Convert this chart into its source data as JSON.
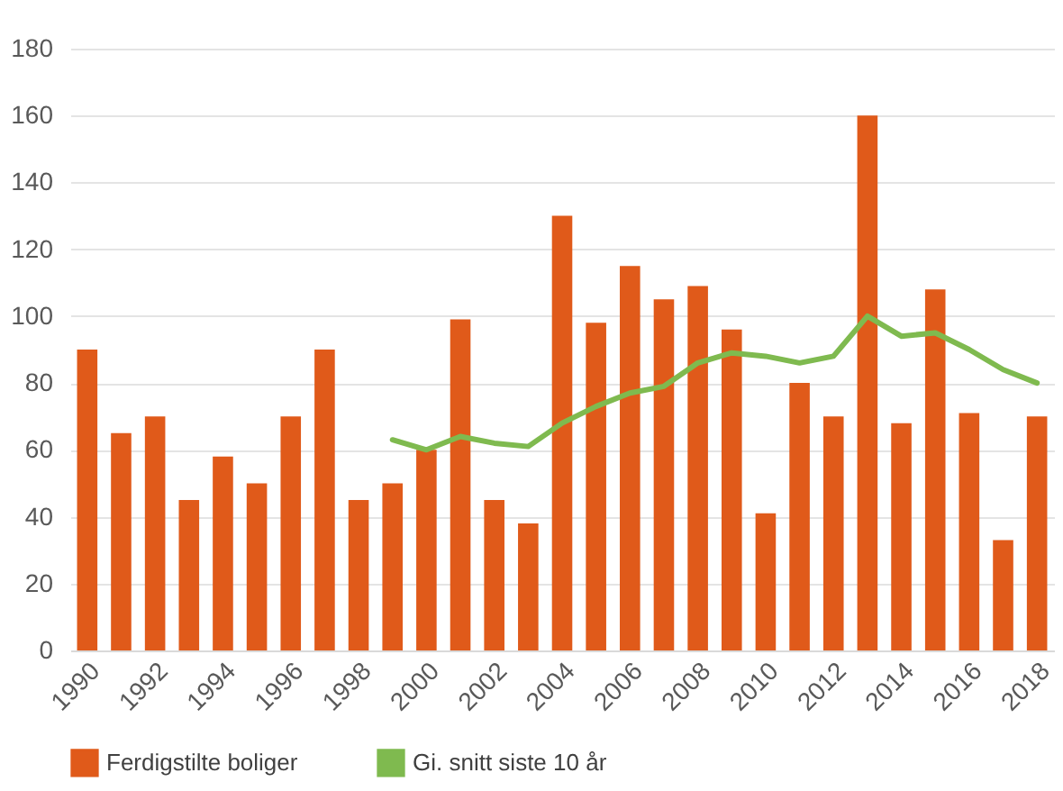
{
  "chart_data": {
    "type": "bar",
    "categories": [
      "1990",
      null,
      "1992",
      null,
      "1994",
      null,
      "1996",
      null,
      "1998",
      null,
      "2000",
      null,
      "2002",
      null,
      "2004",
      null,
      "2006",
      null,
      "2008",
      null,
      "2010",
      null,
      "2012",
      null,
      "2014",
      null,
      "2016",
      null,
      "2018"
    ],
    "series": [
      {
        "name": "Ferdigstilte boliger",
        "color": "#e05a1a",
        "values": [
          90,
          65,
          70,
          45,
          58,
          50,
          70,
          90,
          45,
          50,
          60,
          99,
          45,
          38,
          130,
          98,
          115,
          105,
          109,
          96,
          41,
          80,
          70,
          160,
          68,
          108,
          71,
          33,
          70
        ]
      },
      {
        "name": "Gi. snitt siste 10 år",
        "type": "line",
        "color": "#7fba4f",
        "values": [
          null,
          null,
          null,
          null,
          null,
          null,
          null,
          null,
          null,
          63,
          60,
          64,
          62,
          61,
          68,
          73,
          77,
          79,
          86,
          89,
          88,
          86,
          88,
          100,
          94,
          95,
          90,
          84,
          80
        ]
      }
    ],
    "ylim": [
      0,
      180
    ],
    "yticks": [
      0,
      20,
      40,
      60,
      80,
      100,
      120,
      140,
      160,
      180
    ],
    "grid": "y",
    "legend": "bottom"
  }
}
